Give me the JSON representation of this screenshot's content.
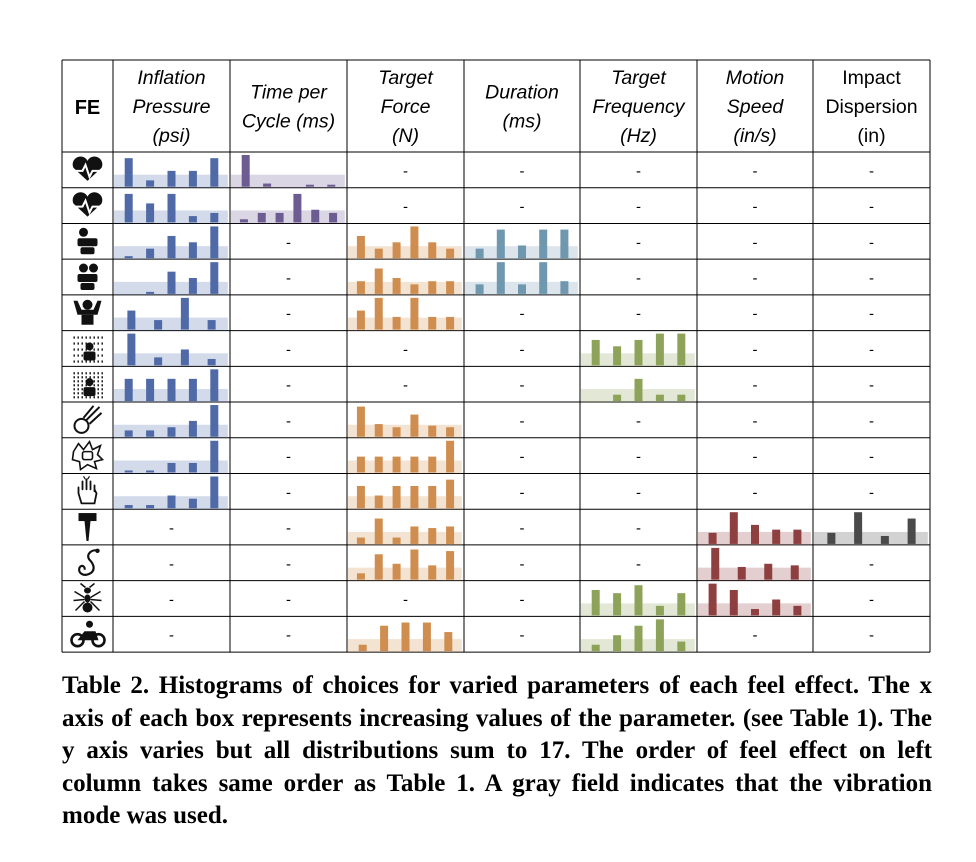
{
  "table": {
    "fe_header": "FE",
    "columns": [
      {
        "lines": [
          "Inflation",
          "Pressure",
          "(psi)"
        ],
        "italic": true
      },
      {
        "lines": [
          "Time per",
          "Cycle (ms)"
        ],
        "italic": true
      },
      {
        "lines": [
          "Target",
          "Force",
          "(N)"
        ],
        "italic": true
      },
      {
        "lines": [
          "Duration",
          "(ms)"
        ],
        "italic": true
      },
      {
        "lines": [
          "Target",
          "Frequency",
          "(Hz)"
        ],
        "italic": true
      },
      {
        "lines": [
          "Motion",
          "Speed",
          "(in/s)"
        ],
        "italic": true
      },
      {
        "lines": [
          "Impact",
          "Dispersion",
          "(in)"
        ],
        "italic": false
      }
    ],
    "empty_marker": "-",
    "colors": {
      "inflation": "#4f6aa6",
      "time": "#6c5c91",
      "force": "#cf8e4f",
      "duration": "#6f97ae",
      "frequency": "#8ea35a",
      "speed": "#8e3f3f",
      "impact": "#4a4a4a",
      "vibration_field": "#d9d9d9"
    },
    "rows": [
      {
        "icon": "heartbeat-icon",
        "cells": [
          [
            0.9,
            0.2,
            0.5,
            0.5,
            0.9
          ],
          [
            1,
            0.1,
            0,
            0.05,
            0.05
          ],
          null,
          null,
          null,
          null,
          null
        ]
      },
      {
        "icon": "heart-pulse-icon",
        "cells": [
          [
            0.9,
            0.6,
            0.9,
            0.2,
            0.3
          ],
          [
            0.1,
            0.3,
            0.3,
            0.9,
            0.4,
            0.3
          ],
          null,
          null,
          null,
          null,
          null
        ]
      },
      {
        "icon": "person-hug-icon",
        "cells": [
          [
            0.05,
            0.3,
            0.7,
            0.5,
            1
          ],
          null,
          [
            0.7,
            0.3,
            0.5,
            1,
            0.5,
            0.3
          ],
          [
            0.3,
            0.9,
            0.4,
            0.9,
            0.9
          ],
          null,
          null,
          null
        ]
      },
      {
        "icon": "group-hug-icon",
        "cells": [
          [
            0,
            0.05,
            0.7,
            0.5,
            1
          ],
          null,
          [
            0.4,
            0.8,
            0.5,
            0.3,
            0.4,
            0.4
          ],
          [
            0.3,
            1,
            0.3,
            1,
            0.4
          ],
          null,
          null,
          null
        ]
      },
      {
        "icon": "flexing-person-icon",
        "cells": [
          [
            0.6,
            0.3,
            1,
            0.3
          ],
          null,
          [
            0.6,
            1,
            0.4,
            1,
            0.4,
            0.4
          ],
          null,
          null,
          null,
          null
        ]
      },
      {
        "icon": "person-light-rain-icon",
        "cells": [
          [
            1,
            0.25,
            0.5,
            0.2
          ],
          null,
          null,
          null,
          [
            0.8,
            0.6,
            0.8,
            1,
            1
          ],
          null,
          null
        ]
      },
      {
        "icon": "person-heavy-rain-icon",
        "cells": [
          [
            0.7,
            0.7,
            0.7,
            0.7,
            1
          ],
          null,
          null,
          null,
          [
            0,
            0.2,
            0.7,
            0.2,
            0.2
          ],
          null,
          null
        ]
      },
      {
        "icon": "meteor-icon",
        "cells": [
          [
            0.2,
            0.2,
            0.3,
            0.5,
            1
          ],
          null,
          [
            0.95,
            0.4,
            0.3,
            0.7,
            0.35,
            0.3
          ],
          null,
          null,
          null,
          null
        ]
      },
      {
        "icon": "punch-icon",
        "cells": [
          [
            0.05,
            0.05,
            0.3,
            0.3,
            1
          ],
          null,
          [
            0.5,
            0.5,
            0.5,
            0.5,
            0.5,
            1
          ],
          null,
          null,
          null,
          null
        ]
      },
      {
        "icon": "hand-tap-icon",
        "cells": [
          [
            0.1,
            0.1,
            0.4,
            0.3,
            1
          ],
          null,
          [
            0.7,
            0.4,
            0.7,
            0.7,
            0.7,
            0.9
          ],
          null,
          null,
          null,
          null
        ]
      },
      {
        "icon": "hammer-icon",
        "cells": [
          null,
          null,
          [
            0.2,
            0.8,
            0.2,
            0.55,
            0.5,
            0.55
          ],
          null,
          null,
          [
            0.35,
            1,
            0.6,
            0.45,
            0.45
          ],
          [
            0.35,
            1,
            0.25,
            0.8
          ]
        ]
      },
      {
        "icon": "snake-icon",
        "cells": [
          null,
          null,
          [
            0.2,
            0.8,
            0.5,
            0.95,
            0.45,
            0.9
          ],
          null,
          null,
          [
            1,
            0.4,
            0.5,
            0.45
          ],
          null
        ]
      },
      {
        "icon": "ant-icon",
        "cells": [
          null,
          null,
          null,
          null,
          [
            0.8,
            0.7,
            0.95,
            0.3,
            0.7
          ],
          [
            1,
            0.8,
            0.2,
            0.5,
            0.3
          ],
          null
        ]
      },
      {
        "icon": "motorcycle-icon",
        "cells": [
          null,
          null,
          [
            0.2,
            0.8,
            0.9,
            0.9,
            0.6
          ],
          null,
          [
            0.2,
            0.5,
            0.8,
            1,
            0.3
          ],
          null,
          null
        ]
      }
    ]
  },
  "caption": "Table 2. Histograms of choices for varied parameters of each feel effect. The x axis of each box represents increasing values of the parameter. (see Table 1). The y axis varies but all distributions sum to 17. The order of feel effect on left column takes same order as Table 1.  A gray field indicates that the vibration mode was used."
}
